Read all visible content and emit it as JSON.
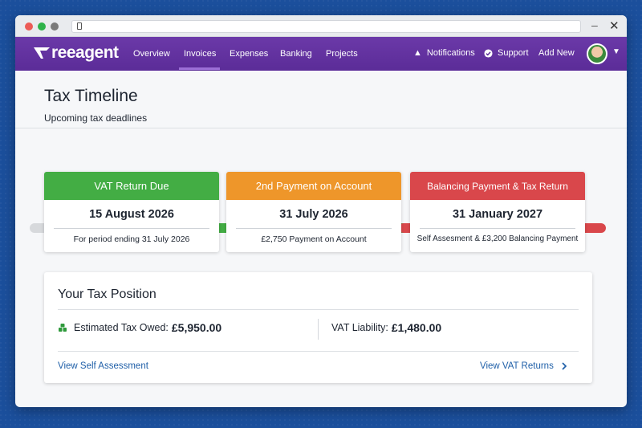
{
  "nav": {
    "logo": "reeagent",
    "links": [
      "Overview",
      "Invoices",
      "Expenses",
      "Banking",
      "Projects"
    ],
    "active_link": "Invoices",
    "notifications": "Notifications",
    "support": "Support",
    "add_new": "Add New"
  },
  "page": {
    "title": "Tax Timeline",
    "subtitle": "Upcoming tax deadlines"
  },
  "cards": [
    {
      "title": "VAT Return Due",
      "date": "15 August 2026",
      "note": "For period ending 31 July 2026",
      "color": "#43ad44"
    },
    {
      "title": "2nd Payment on Account",
      "date": "31 July 2026",
      "note": "£2,750 Payment on Account",
      "color": "#ee962a"
    },
    {
      "title": "Balancing Payment & Tax Return",
      "date": "31 January 2027",
      "note": "Self Assesment & £3,200 Balancing Payment",
      "color": "#d9474b"
    }
  ],
  "tax_position": {
    "title": "Your Tax Position",
    "estimated_label": "Estimated Tax Owed:",
    "estimated_value": "£5,950.00",
    "vat_label": "VAT Liability:",
    "vat_value": "£1,480.00",
    "link_left": "View Self Assessment",
    "link_right": "View VAT Returns"
  },
  "colors": {
    "brand": "#5b2c98",
    "link": "#1f5fa8",
    "green": "#43ad44",
    "orange": "#ee962a",
    "red": "#d9474b"
  },
  "icons": {
    "notifications": "bell-icon",
    "support": "check-circle-icon",
    "money": "money-icon",
    "chevron": "chevron-right-icon"
  }
}
